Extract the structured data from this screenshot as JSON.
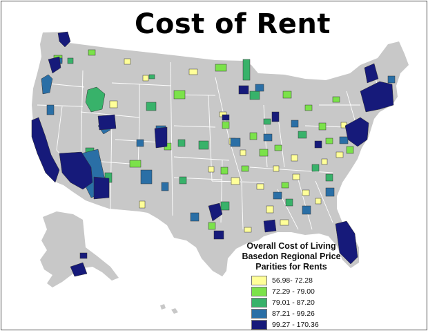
{
  "title": "Cost of Rent",
  "legend": {
    "title_lines": [
      "Overall Cost of Living",
      "Basedon Regional Price",
      "Parities for Rents"
    ],
    "classes": [
      {
        "label": "56.98- 72.28",
        "color": "#ffff99"
      },
      {
        "label": "72.29 - 79.00",
        "color": "#7be24a"
      },
      {
        "label": "79.01 - 87.20",
        "color": "#38b26a"
      },
      {
        "label": "87.21 - 99.26",
        "color": "#2a6fa6"
      },
      {
        "label": "99.27 - 170.36",
        "color": "#161a7a"
      }
    ]
  },
  "colors": {
    "land": "#c8c8c8",
    "state_border": "#ffffff",
    "background": "#ffffff"
  }
}
